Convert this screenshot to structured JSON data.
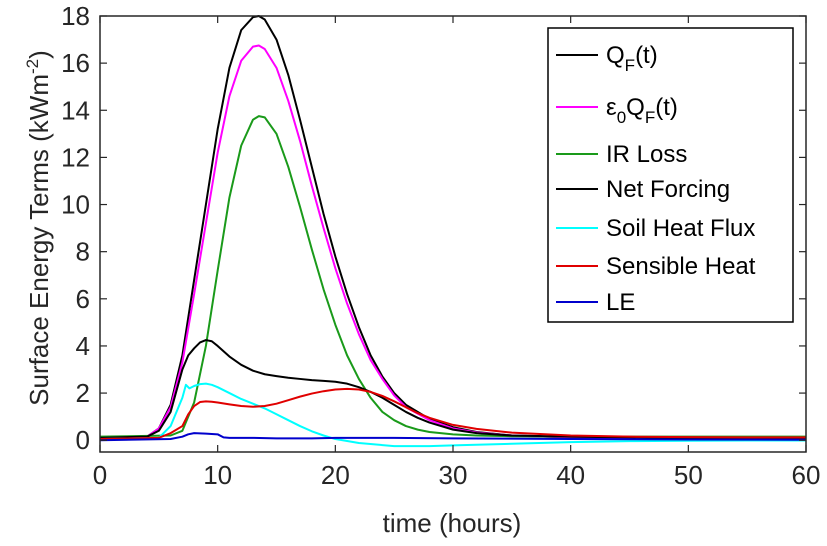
{
  "chart_data": {
    "type": "line",
    "xlabel": "time (hours)",
    "ylabel_main": "Surface Energy Terms (kWm",
    "ylabel_sup": "-2",
    "ylabel_close": ")",
    "xlim": [
      0,
      60
    ],
    "ylim": [
      -0.5,
      18
    ],
    "xticks": [
      0,
      10,
      20,
      30,
      40,
      50,
      60
    ],
    "yticks": [
      0,
      2,
      4,
      6,
      8,
      10,
      12,
      14,
      16,
      18
    ],
    "grid": false,
    "legend_position": "top-right",
    "series": [
      {
        "name": "Q_F(t)",
        "label_parts": {
          "base": "Q",
          "sub": "F",
          "tail": "(t)"
        },
        "color": "#000000",
        "x": [
          0,
          4,
          5,
          6,
          7,
          8,
          9,
          10,
          11,
          12,
          13,
          13.5,
          14,
          15,
          16,
          17,
          18,
          19,
          20,
          21,
          22,
          23,
          24,
          25,
          26,
          28,
          30,
          32,
          35,
          40,
          45,
          50,
          55,
          60
        ],
        "y": [
          0.1,
          0.15,
          0.5,
          1.5,
          3.6,
          6.8,
          10.0,
          13.2,
          15.8,
          17.4,
          17.95,
          18.0,
          17.85,
          17.0,
          15.5,
          13.6,
          11.6,
          9.6,
          7.8,
          6.2,
          4.8,
          3.6,
          2.7,
          2.0,
          1.5,
          0.9,
          0.55,
          0.35,
          0.2,
          0.12,
          0.1,
          0.1,
          0.1,
          0.1
        ]
      },
      {
        "name": "ε_0 Q_F(t)",
        "label_parts": {
          "pre": "ε",
          "pre_sub": "0",
          "base": "Q",
          "sub": "F",
          "tail": "(t)"
        },
        "color": "#ff00ff",
        "x": [
          0,
          4,
          5,
          6,
          7,
          8,
          9,
          10,
          11,
          12,
          13,
          13.5,
          14,
          15,
          16,
          17,
          18,
          19,
          20,
          21,
          22,
          23,
          24,
          25,
          26,
          28,
          30,
          32,
          35,
          40,
          45,
          50,
          55,
          60
        ],
        "y": [
          0.1,
          0.15,
          0.5,
          1.4,
          3.3,
          6.2,
          9.2,
          12.2,
          14.6,
          16.1,
          16.7,
          16.75,
          16.6,
          15.8,
          14.4,
          12.7,
          10.8,
          9.0,
          7.3,
          5.8,
          4.5,
          3.4,
          2.6,
          1.9,
          1.4,
          0.85,
          0.5,
          0.33,
          0.2,
          0.12,
          0.1,
          0.1,
          0.1,
          0.1
        ]
      },
      {
        "name": "IR Loss",
        "color": "#1a9a1a",
        "x": [
          0,
          6,
          7,
          8,
          9,
          10,
          11,
          12,
          13,
          13.5,
          14,
          15,
          16,
          17,
          18,
          19,
          20,
          21,
          22,
          23,
          24,
          25,
          26,
          27,
          28,
          30,
          32,
          35,
          40,
          45,
          50,
          55,
          60
        ],
        "y": [
          0.15,
          0.2,
          0.4,
          1.6,
          4.0,
          7.2,
          10.3,
          12.5,
          13.6,
          13.75,
          13.7,
          13.0,
          11.6,
          9.9,
          8.1,
          6.4,
          4.9,
          3.6,
          2.6,
          1.8,
          1.2,
          0.85,
          0.6,
          0.45,
          0.35,
          0.25,
          0.2,
          0.17,
          0.15,
          0.15,
          0.15,
          0.15,
          0.15
        ]
      },
      {
        "name": "Net Forcing",
        "color": "#000000",
        "x": [
          0,
          4,
          5,
          6,
          7,
          7.5,
          8,
          8.5,
          9,
          9.5,
          10,
          11,
          12,
          13,
          14,
          15,
          16,
          17,
          18,
          19,
          20,
          21,
          22,
          23,
          24,
          25,
          26,
          27,
          28,
          30,
          32,
          35,
          40,
          45,
          50,
          55,
          60
        ],
        "y": [
          0.1,
          0.15,
          0.4,
          1.2,
          3.0,
          3.6,
          3.9,
          4.15,
          4.25,
          4.2,
          4.0,
          3.55,
          3.2,
          2.95,
          2.8,
          2.72,
          2.65,
          2.6,
          2.55,
          2.52,
          2.48,
          2.4,
          2.25,
          2.05,
          1.8,
          1.5,
          1.2,
          0.95,
          0.75,
          0.45,
          0.3,
          0.2,
          0.15,
          0.12,
          0.1,
          0.1,
          0.1
        ]
      },
      {
        "name": "Soil Heat Flux",
        "color": "#00ffff",
        "x": [
          0,
          5,
          6,
          7,
          7.3,
          7.6,
          8,
          8.5,
          9,
          9.5,
          10,
          11,
          12,
          13,
          14,
          15,
          16,
          17,
          18,
          19,
          20,
          22,
          25,
          28,
          30,
          35,
          40,
          45,
          50,
          55,
          60
        ],
        "y": [
          0.05,
          0.1,
          0.6,
          1.8,
          2.35,
          2.2,
          2.3,
          2.38,
          2.4,
          2.35,
          2.25,
          2.0,
          1.75,
          1.55,
          1.35,
          1.1,
          0.85,
          0.6,
          0.38,
          0.2,
          0.05,
          -0.12,
          -0.25,
          -0.25,
          -0.22,
          -0.15,
          -0.08,
          -0.04,
          -0.02,
          -0.01,
          -0.01
        ]
      },
      {
        "name": "Sensible Heat",
        "color": "#e00000",
        "x": [
          0,
          5,
          6,
          7,
          7.5,
          8,
          8.5,
          9,
          9.5,
          10,
          11,
          12,
          13,
          14,
          15,
          16,
          17,
          18,
          19,
          20,
          21,
          22,
          23,
          24,
          25,
          26,
          27,
          28,
          30,
          32,
          35,
          40,
          45,
          50,
          55,
          60
        ],
        "y": [
          0.05,
          0.1,
          0.3,
          0.6,
          1.1,
          1.45,
          1.62,
          1.65,
          1.63,
          1.6,
          1.52,
          1.45,
          1.42,
          1.45,
          1.55,
          1.7,
          1.85,
          1.98,
          2.08,
          2.15,
          2.18,
          2.15,
          2.05,
          1.88,
          1.65,
          1.4,
          1.15,
          0.95,
          0.65,
          0.48,
          0.32,
          0.2,
          0.15,
          0.13,
          0.12,
          0.12
        ]
      },
      {
        "name": "LE",
        "color": "#0000cc",
        "x": [
          0,
          6,
          7,
          7.5,
          8,
          9,
          10,
          10.5,
          11,
          13,
          15,
          18,
          20,
          25,
          30,
          40,
          50,
          60
        ],
        "y": [
          0.0,
          0.05,
          0.15,
          0.25,
          0.3,
          0.28,
          0.25,
          0.12,
          0.1,
          0.1,
          0.08,
          0.08,
          0.1,
          0.1,
          0.08,
          0.05,
          0.03,
          0.02
        ]
      }
    ]
  }
}
